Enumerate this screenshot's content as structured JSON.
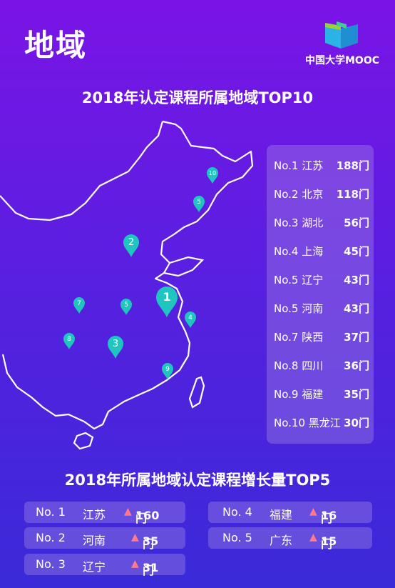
{
  "header": {
    "title": "地域",
    "logo_text": "中国大学MOOC"
  },
  "colors": {
    "accent": "#1fc6c0",
    "panel": "#af96e6",
    "arrow": "#ff7a8a"
  },
  "map_section": {
    "title": "2018年认定课程所属地域TOP10",
    "pins": [
      {
        "label": "1",
        "size": "large"
      },
      {
        "label": "2",
        "size": "medium"
      },
      {
        "label": "3",
        "size": "medium"
      },
      {
        "label": "4",
        "size": "small"
      },
      {
        "label": "5",
        "size": "small"
      },
      {
        "label": "5",
        "size": "small"
      },
      {
        "label": "7",
        "size": "small"
      },
      {
        "label": "8",
        "size": "small"
      },
      {
        "label": "9",
        "size": "small"
      },
      {
        "label": "10",
        "size": "small"
      }
    ]
  },
  "top10": [
    {
      "rank": "No.1",
      "region": "江苏",
      "count": "188门"
    },
    {
      "rank": "No.2",
      "region": "北京",
      "count": "118门"
    },
    {
      "rank": "No.3",
      "region": "湖北",
      "count": "56门"
    },
    {
      "rank": "No.4",
      "region": "上海",
      "count": "45门"
    },
    {
      "rank": "No.5",
      "region": "辽宁",
      "count": "43门"
    },
    {
      "rank": "No.5",
      "region": "河南",
      "count": "43门"
    },
    {
      "rank": "No.7",
      "region": "陕西",
      "count": "37门"
    },
    {
      "rank": "No.8",
      "region": "四川",
      "count": "36门"
    },
    {
      "rank": "No.9",
      "region": "福建",
      "count": "35门"
    },
    {
      "rank": "No.10",
      "region": "黑龙江",
      "count": "30门"
    }
  ],
  "growth_section": {
    "title": "2018年所属地域认定课程增长量TOP5",
    "arrow_icon": "up-arrow-icon",
    "items": [
      {
        "rank": "No. 1",
        "region": "江苏",
        "value": "160",
        "unit": "门"
      },
      {
        "rank": "No. 2",
        "region": "河南",
        "value": "35",
        "unit": "门"
      },
      {
        "rank": "No. 3",
        "region": "辽宁",
        "value": "31",
        "unit": "门"
      },
      {
        "rank": "No. 4",
        "region": "福建",
        "value": "16",
        "unit": "门"
      },
      {
        "rank": "No. 5",
        "region": "广东",
        "value": "15",
        "unit": "门"
      }
    ]
  }
}
